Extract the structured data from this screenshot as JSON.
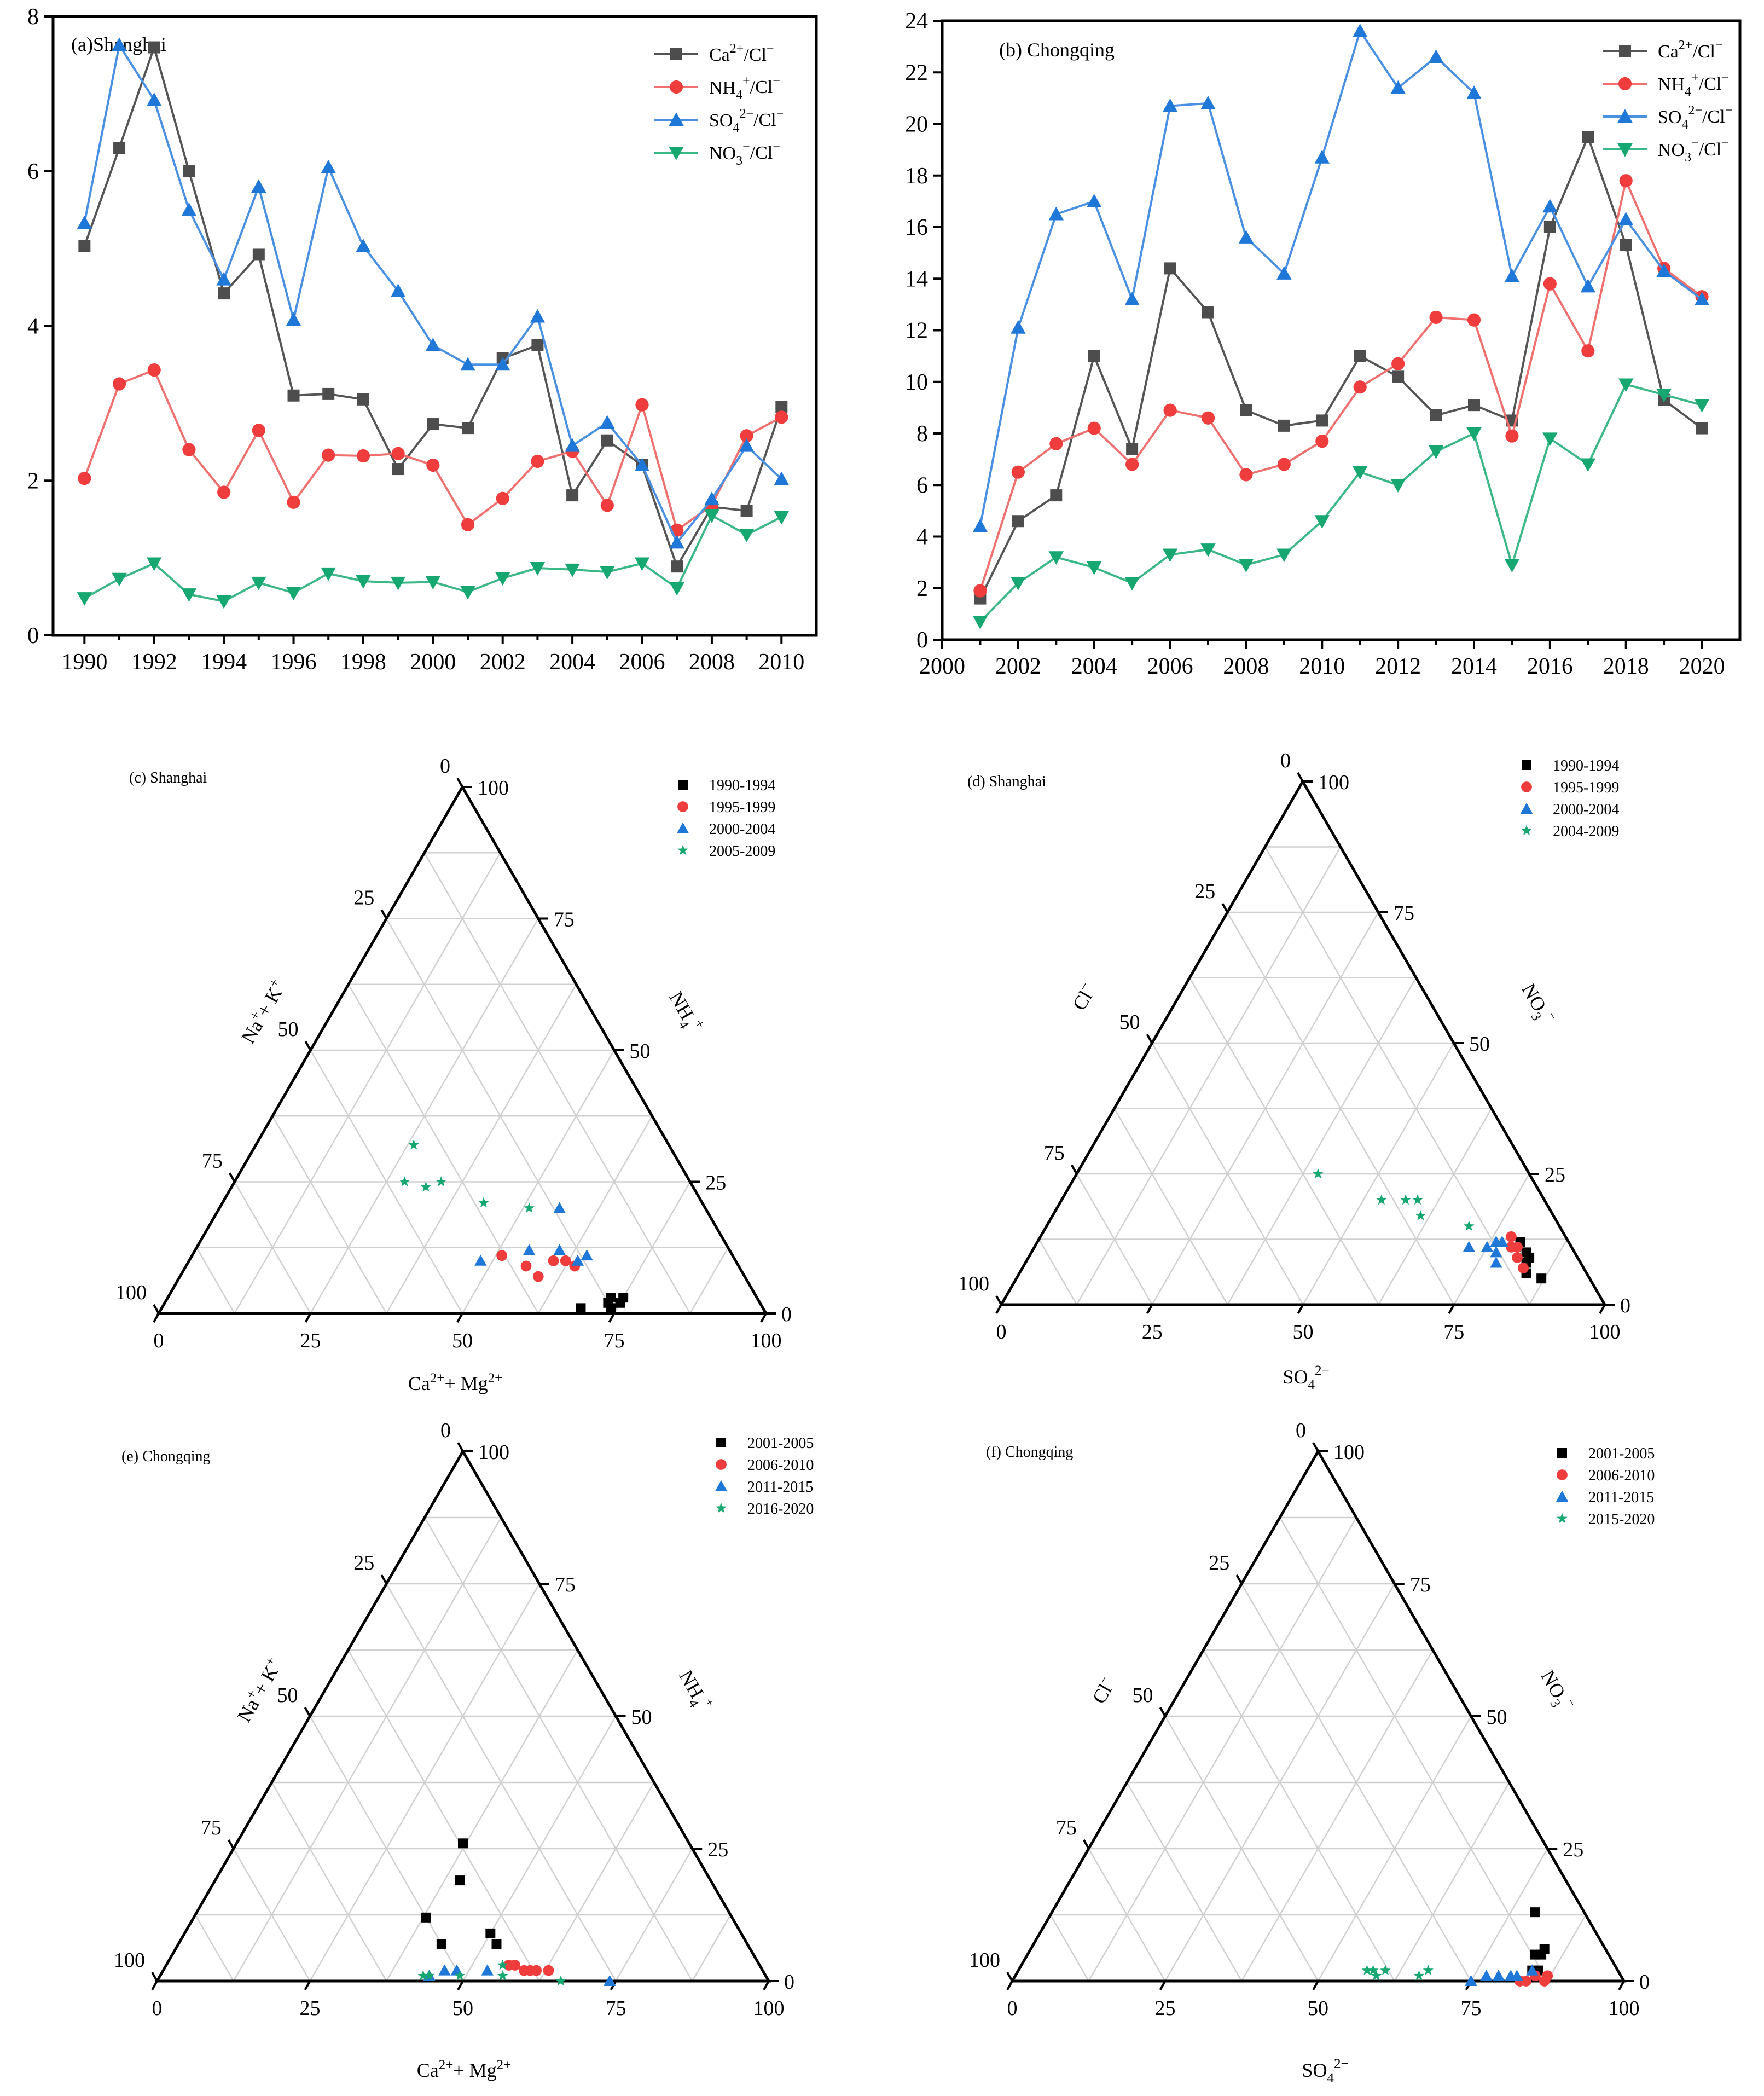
{
  "colors": {
    "black": "#000000",
    "gray": "#4d4d4d",
    "red": "#ef3d3d",
    "blue": "#1f78d8",
    "green": "#16a870"
  },
  "chart_data": [
    {
      "type": "line",
      "title": "(a)Shanghai",
      "ylim": [
        0,
        8
      ],
      "yticks": [
        "0",
        "2",
        "4",
        "6",
        "8"
      ],
      "xticks": [
        "1990",
        "1992",
        "1994",
        "1996",
        "1998",
        "2000",
        "2002",
        "2004",
        "2006",
        "2008",
        "2010"
      ],
      "xlim": [
        1989.1,
        2011.0
      ],
      "x": [
        1990,
        1991,
        1992,
        1993,
        1994,
        1995,
        1996,
        1997,
        1998,
        1999,
        2000,
        2001,
        2002,
        2003,
        2004,
        2005,
        2006,
        2007,
        2008,
        2009,
        2010
      ],
      "series": [
        {
          "name": "Ca2+/Cl-",
          "label_main": "Ca",
          "label_sup": "2+",
          "label_tail": "/Cl",
          "label_tail_sup": "−",
          "color": "#4d4d4d",
          "line_color": "#555555",
          "marker": "square",
          "values": [
            5.03,
            6.3,
            7.6,
            6.0,
            4.42,
            4.92,
            3.1,
            3.12,
            3.05,
            2.15,
            2.73,
            2.68,
            3.58,
            3.75,
            1.81,
            2.52,
            2.2,
            0.89,
            1.66,
            1.61,
            2.95
          ]
        },
        {
          "name": "NH4+/Cl-",
          "label_main": "NH",
          "label_sub": "4",
          "label_sup": "+",
          "label_tail": "/Cl",
          "label_tail_sup": "−",
          "color": "#ef3d3d",
          "line_color": "#f07070",
          "marker": "circle",
          "values": [
            2.03,
            3.25,
            3.43,
            2.4,
            1.85,
            2.65,
            1.72,
            2.33,
            2.32,
            2.35,
            2.2,
            1.43,
            1.77,
            2.25,
            2.38,
            1.68,
            2.98,
            1.36,
            1.68,
            2.58,
            2.82
          ]
        },
        {
          "name": "SO42-/Cl-",
          "label_main": "SO",
          "label_sub": "4",
          "label_sup": "2−",
          "label_tail": "/Cl",
          "label_tail_sup": "−",
          "color": "#1f78d8",
          "line_color": "#4a90e2",
          "marker": "triangle-up",
          "values": [
            5.33,
            7.63,
            6.92,
            5.5,
            4.6,
            5.8,
            4.08,
            6.05,
            5.03,
            4.45,
            3.75,
            3.5,
            3.5,
            4.12,
            2.45,
            2.75,
            2.2,
            1.2,
            1.76,
            2.45,
            2.02
          ]
        },
        {
          "name": "NO3-/Cl-",
          "label_main": "NO",
          "label_sub": "3",
          "label_sup": "−",
          "label_tail": "/Cl",
          "label_tail_sup": "−",
          "color": "#16a870",
          "line_color": "#3cb888",
          "marker": "triangle-down",
          "values": [
            0.48,
            0.73,
            0.93,
            0.53,
            0.44,
            0.68,
            0.55,
            0.8,
            0.7,
            0.68,
            0.69,
            0.56,
            0.74,
            0.87,
            0.85,
            0.82,
            0.93,
            0.61,
            1.55,
            1.3,
            1.53
          ]
        }
      ]
    },
    {
      "type": "line",
      "title": "(b) Chongqing",
      "ylim": [
        0,
        24
      ],
      "yticks": [
        "0",
        "2",
        "4",
        "6",
        "8",
        "10",
        "12",
        "14",
        "16",
        "18",
        "20",
        "22",
        "24"
      ],
      "xticks": [
        "2000",
        "2002",
        "2004",
        "2006",
        "2008",
        "2010",
        "2012",
        "2014",
        "2016",
        "2018",
        "2020"
      ],
      "xlim": [
        2000.0,
        2021.0
      ],
      "x": [
        2001,
        2002,
        2003,
        2004,
        2005,
        2006,
        2007,
        2008,
        2009,
        2010,
        2011,
        2012,
        2013,
        2014,
        2015,
        2016,
        2017,
        2018,
        2019,
        2020
      ],
      "series": [
        {
          "name": "Ca2+/Cl-",
          "label_main": "Ca",
          "label_sup": "2+",
          "label_tail": "/Cl",
          "label_tail_sup": "−",
          "color": "#4d4d4d",
          "line_color": "#555555",
          "marker": "square",
          "values": [
            1.6,
            4.6,
            5.6,
            11.0,
            7.4,
            14.4,
            12.7,
            8.9,
            8.3,
            8.5,
            11.0,
            10.2,
            8.7,
            9.1,
            8.5,
            16.0,
            19.5,
            15.3,
            9.3,
            8.2
          ]
        },
        {
          "name": "NH4+/Cl-",
          "label_main": "NH",
          "label_sub": "4",
          "label_sup": "+",
          "label_tail": "/Cl",
          "label_tail_sup": "−",
          "color": "#ef3d3d",
          "line_color": "#f07070",
          "marker": "circle",
          "values": [
            1.9,
            6.5,
            7.6,
            8.2,
            6.8,
            8.9,
            8.6,
            6.4,
            6.8,
            7.7,
            9.8,
            10.7,
            12.5,
            12.4,
            7.9,
            13.8,
            11.2,
            17.8,
            14.4,
            13.3
          ]
        },
        {
          "name": "SO42-/Cl-",
          "label_main": "SO",
          "label_sub": "4",
          "label_sup": "2−",
          "label_tail": "/Cl",
          "label_tail_sup": "−",
          "color": "#1f78d8",
          "line_color": "#4a90e2",
          "marker": "triangle-up",
          "values": [
            4.4,
            12.1,
            16.5,
            17.0,
            13.2,
            20.7,
            20.8,
            15.6,
            14.2,
            18.7,
            23.6,
            21.4,
            22.6,
            21.2,
            14.1,
            16.8,
            13.7,
            16.3,
            14.3,
            13.2
          ]
        },
        {
          "name": "NO3-/Cl-",
          "label_main": "NO",
          "label_sub": "3",
          "label_sup": "−",
          "label_tail": "/Cl",
          "label_tail_sup": "−",
          "color": "#16a870",
          "line_color": "#3cb888",
          "marker": "triangle-down",
          "values": [
            0.7,
            2.2,
            3.2,
            2.8,
            2.2,
            3.3,
            3.5,
            2.9,
            3.3,
            4.6,
            6.5,
            6.0,
            7.3,
            8.0,
            2.9,
            7.8,
            6.8,
            9.9,
            9.5,
            9.1
          ]
        }
      ]
    },
    {
      "type": "ternary",
      "title": "(c) Shanghai",
      "axes": {
        "bottom": "Ca2+ + Mg2+",
        "left": "Na+ + K+",
        "right": "NH4+"
      },
      "tick_labels": [
        "0",
        "25",
        "50",
        "75",
        "100"
      ],
      "series": [
        {
          "name": "1990-1994",
          "color": "#000000",
          "marker": "square",
          "points": [
            [
              22,
              75,
              3
            ],
            [
              25,
              74,
              1
            ],
            [
              25,
              73,
              2
            ],
            [
              24,
              73,
              3
            ],
            [
              23,
              75,
              2
            ],
            [
              30,
              69,
              1
            ]
          ]
        },
        {
          "name": "1995-1999",
          "color": "#ef3d3d",
          "marker": "circle",
          "points": [
            [
              38,
              51,
              11
            ],
            [
              35,
              56,
              9
            ],
            [
              34,
              59,
              7
            ],
            [
              30,
              60,
              10
            ],
            [
              28,
              62,
              10
            ],
            [
              27,
              64,
              9
            ]
          ]
        },
        {
          "name": "2000-2004",
          "color": "#1f78d8",
          "marker": "triangle-up",
          "points": [
            [
              42,
              48,
              10
            ],
            [
              33,
              55,
              12
            ],
            [
              28,
              60,
              12
            ],
            [
              26,
              64,
              10
            ],
            [
              24,
              65,
              11
            ],
            [
              24,
              56,
              20
            ]
          ]
        },
        {
          "name": "2005-2009",
          "color": "#16a870",
          "marker": "star",
          "points": [
            [
              47,
              28,
              25
            ],
            [
              44,
              32,
              24
            ],
            [
              41,
              34,
              25
            ],
            [
              42,
              26,
              32
            ],
            [
              36,
              43,
              21
            ],
            [
              29,
              51,
              20
            ]
          ]
        }
      ]
    },
    {
      "type": "ternary",
      "title": "(d) Shanghai",
      "axes": {
        "bottom": "SO42-",
        "left": "Cl-",
        "right": "NO3-"
      },
      "tick_labels": [
        "0",
        "25",
        "50",
        "75",
        "100"
      ],
      "series": [
        {
          "name": "1990-1994",
          "color": "#000000",
          "marker": "square",
          "points": [
            [
              9,
              83,
              8
            ],
            [
              8,
              80,
              12
            ],
            [
              8,
              83,
              9
            ],
            [
              8,
              82,
              10
            ],
            [
              10,
              84,
              6
            ],
            [
              8,
              87,
              5
            ]
          ]
        },
        {
          "name": "1995-1999",
          "color": "#ef3d3d",
          "marker": "circle",
          "points": [
            [
              10,
              79,
              11
            ],
            [
              10,
              81,
              9
            ],
            [
              9,
              80,
              11
            ],
            [
              10,
              83,
              7
            ],
            [
              9,
              78,
              13
            ]
          ]
        },
        {
          "name": "2000-2004",
          "color": "#1f78d8",
          "marker": "triangle-up",
          "points": [
            [
              14,
              78,
              8
            ],
            [
              13,
              77,
              10
            ],
            [
              11,
              77,
              12
            ],
            [
              12,
              76,
              12
            ],
            [
              14,
              75,
              11
            ],
            [
              17,
              72,
              11
            ]
          ]
        },
        {
          "name": "2004-2009",
          "color": "#16a870",
          "marker": "star",
          "points": [
            [
              35,
              40,
              25
            ],
            [
              27,
              53,
              20
            ],
            [
              22,
              61,
              17
            ],
            [
              21,
              59,
              20
            ],
            [
              23,
              57,
              20
            ],
            [
              15,
              70,
              15
            ]
          ]
        }
      ]
    },
    {
      "type": "ternary",
      "title": "(e) Chongqing",
      "axes": {
        "bottom": "Ca2+ + Mg2+",
        "left": "Na+ + K+",
        "right": "NH4+"
      },
      "tick_labels": [
        "0",
        "25",
        "50",
        "75",
        "100"
      ],
      "series": [
        {
          "name": "2001-2005",
          "color": "#000000",
          "marker": "square",
          "points": [
            [
              50,
              43,
              7
            ],
            [
              50,
              38,
              12
            ],
            [
              41,
              40,
              19
            ],
            [
              41,
              50,
              9
            ],
            [
              41,
              52,
              7
            ],
            [
              37,
              37,
              26
            ]
          ]
        },
        {
          "name": "2006-2010",
          "color": "#ef3d3d",
          "marker": "circle",
          "points": [
            [
              41,
              56,
              3
            ],
            [
              39,
              59,
              2
            ],
            [
              38,
              60,
              2
            ],
            [
              37,
              61,
              2
            ],
            [
              35,
              63,
              2
            ],
            [
              40,
              57,
              3
            ]
          ]
        },
        {
          "name": "2011-2015",
          "color": "#1f78d8",
          "marker": "triangle-up",
          "points": [
            [
              55,
              44,
              1
            ],
            [
              52,
              46,
              2
            ],
            [
              50,
              48,
              2
            ],
            [
              45,
              53,
              2
            ],
            [
              26,
              74,
              0
            ]
          ]
        },
        {
          "name": "2016-2020",
          "color": "#16a870",
          "marker": "star",
          "points": [
            [
              56,
              43,
              1
            ],
            [
              55,
              44,
              1
            ],
            [
              50,
              49,
              1
            ],
            [
              43,
              56,
              1
            ],
            [
              42,
              55,
              3
            ],
            [
              34,
              66,
              0
            ]
          ]
        }
      ]
    },
    {
      "type": "ternary",
      "title": "(f) Chongqing",
      "axes": {
        "bottom": "SO42-",
        "left": "Cl-",
        "right": "NO3-"
      },
      "tick_labels": [
        "0",
        "25",
        "50",
        "75",
        "100"
      ],
      "series": [
        {
          "name": "2001-2005",
          "color": "#000000",
          "marker": "square",
          "points": [
            [
              10,
              84,
              6
            ],
            [
              12,
              83,
              5
            ],
            [
              14,
              84,
              2
            ],
            [
              13,
              85,
              2
            ],
            [
              11,
              84,
              5
            ],
            [
              8,
              79,
              13
            ]
          ]
        },
        {
          "name": "2006-2010",
          "color": "#ef3d3d",
          "marker": "circle",
          "points": [
            [
              17,
              83,
              0
            ],
            [
              14,
              85,
              1
            ],
            [
              13,
              87,
              0
            ],
            [
              12,
              87,
              1
            ],
            [
              16,
              84,
              0
            ]
          ]
        },
        {
          "name": "2011-2015",
          "color": "#1f78d8",
          "marker": "triangle-up",
          "points": [
            [
              25,
              75,
              0
            ],
            [
              22,
              77,
              1
            ],
            [
              20,
              79,
              1
            ],
            [
              18,
              81,
              1
            ],
            [
              17,
              82,
              1
            ],
            [
              14,
              84,
              2
            ]
          ]
        },
        {
          "name": "2015-2020",
          "color": "#16a870",
          "marker": "star",
          "points": [
            [
              41,
              57,
              2
            ],
            [
              40,
              58,
              2
            ],
            [
              38,
              60,
              2
            ],
            [
              33,
              66,
              1
            ],
            [
              31,
              67,
              2
            ],
            [
              40,
              59,
              1
            ]
          ]
        }
      ]
    }
  ]
}
